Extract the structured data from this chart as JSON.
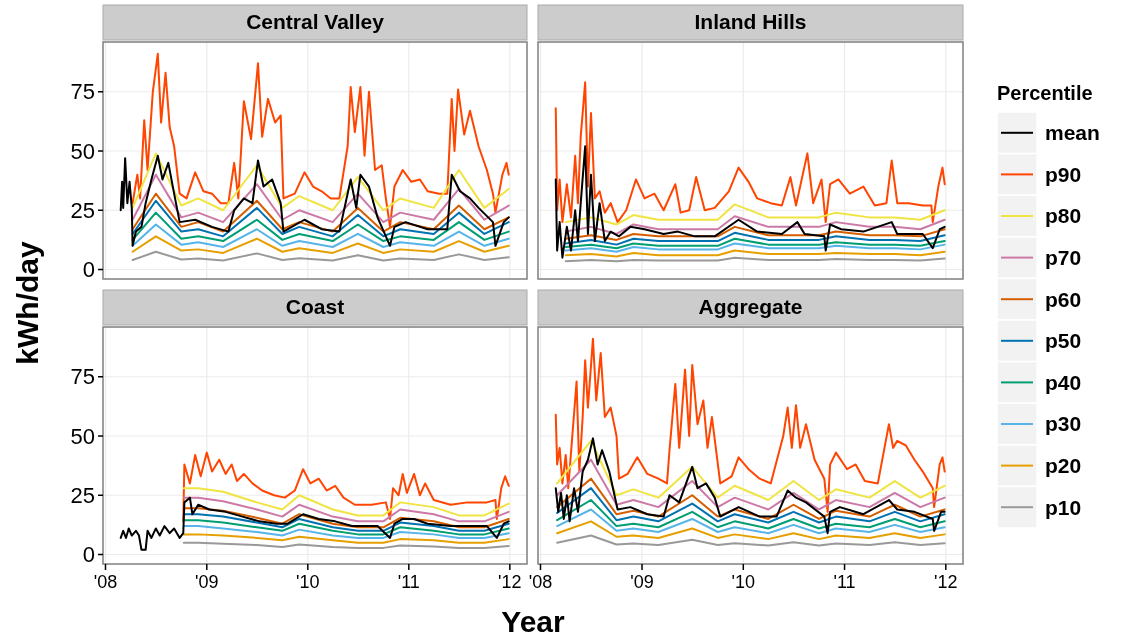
{
  "chart_data": [
    {
      "type": "line",
      "title": "Central Valley",
      "ylabel": "kWh/day",
      "tick_labels": "y",
      "grid": true,
      "xlim": [
        "2007-12-23",
        "2012-03-03"
      ],
      "ylim": [
        -4,
        96
      ],
      "yticks": [
        0,
        25,
        50,
        75
      ],
      "xticks": [
        "2008",
        "2009",
        "2010",
        "2011",
        "2012"
      ],
      "x": [
        "2008-04-08",
        "2008-07",
        "2008-10",
        "2008-12",
        "2009-03",
        "2009-07",
        "2009-10",
        "2009-12",
        "2010-04",
        "2010-07",
        "2010-10",
        "2010-12",
        "2011-04",
        "2011-07",
        "2011-10",
        "2011-12-28"
      ],
      "series": [
        {
          "color": "#000000",
          "x": [
            "2008-02-25",
            "2008-03-01",
            "2008-03-05",
            "2008-03-12",
            "2008-03-20",
            "2008-03-28",
            "2008-04-05",
            "2008-04-08",
            "2008-04-20",
            "2008-05-10",
            "2008-05-25",
            "2008-06-15",
            "2008-07-08",
            "2008-07-25",
            "2008-08-15",
            "2008-09-05",
            "2008-09-25",
            "2008-11-20",
            "2009-01-20",
            "2009-03-20",
            "2009-04-10",
            "2009-05-15",
            "2009-06-15",
            "2009-07-05",
            "2009-07-25",
            "2009-08-25",
            "2009-09-25",
            "2009-10-05",
            "2009-12-20",
            "2010-02-20",
            "2010-04-25",
            "2010-06-05",
            "2010-06-25",
            "2010-07-10",
            "2010-08-10",
            "2010-09-10",
            "2010-10-25",
            "2010-11-10",
            "2010-12-20",
            "2011-03-10",
            "2011-05-20",
            "2011-06-05",
            "2011-07-05",
            "2011-08-10",
            "2011-09-10",
            "2011-11-01",
            "2011-11-10",
            "2011-12-10",
            "2011-12-28"
          ],
          "values": [
            25,
            37,
            26,
            47,
            28,
            37,
            26,
            10,
            16,
            18,
            28,
            38,
            48,
            38,
            45,
            32,
            20,
            21,
            18,
            16,
            25,
            30,
            28,
            46,
            35,
            38,
            28,
            16,
            21,
            17,
            16,
            38,
            26,
            40,
            35,
            22,
            10,
            18,
            20,
            17,
            17,
            40,
            33,
            30,
            26,
            20,
            10,
            20,
            22
          ]
        },
        {
          "color": "#ff4500",
          "x": [
            "2008-04-08",
            "2008-04-25",
            "2008-05-05",
            "2008-05-20",
            "2008-06-01",
            "2008-06-20",
            "2008-07-08",
            "2008-07-20",
            "2008-08-05",
            "2008-08-20",
            "2008-09-05",
            "2008-09-25",
            "2008-10-20",
            "2008-11-20",
            "2008-12-20",
            "2009-01-20",
            "2009-02-20",
            "2009-03-20",
            "2009-04-10",
            "2009-04-25",
            "2009-05-15",
            "2009-06-10",
            "2009-07-05",
            "2009-07-20",
            "2009-08-10",
            "2009-09-05",
            "2009-09-25",
            "2009-10-05",
            "2009-11-15",
            "2009-12-20",
            "2010-01-20",
            "2010-02-20",
            "2010-03-25",
            "2010-04-25",
            "2010-05-25",
            "2010-06-05",
            "2010-06-20",
            "2010-07-10",
            "2010-07-25",
            "2010-08-10",
            "2010-09-01",
            "2010-09-25",
            "2010-10-10",
            "2010-10-25",
            "2010-11-10",
            "2010-12-10",
            "2011-01-10",
            "2011-02-10",
            "2011-03-10",
            "2011-04-20",
            "2011-05-20",
            "2011-06-05",
            "2011-06-15",
            "2011-06-28",
            "2011-07-20",
            "2011-08-10",
            "2011-09-10",
            "2011-10-10",
            "2011-11-01",
            "2011-11-10",
            "2011-12-05",
            "2011-12-20",
            "2011-12-28"
          ],
          "values": [
            28,
            40,
            30,
            63,
            42,
            75,
            91,
            62,
            83,
            60,
            52,
            32,
            30,
            41,
            33,
            32,
            28,
            28,
            45,
            30,
            71,
            55,
            87,
            56,
            72,
            62,
            65,
            30,
            32,
            41,
            35,
            33,
            30,
            30,
            52,
            77,
            58,
            77,
            48,
            75,
            42,
            44,
            30,
            18,
            35,
            42,
            37,
            38,
            33,
            32,
            32,
            72,
            50,
            76,
            57,
            67,
            52,
            42,
            32,
            24,
            40,
            45,
            40
          ]
        },
        {
          "color": "#f0e442",
          "values": [
            26,
            49,
            27,
            30,
            25,
            44,
            26,
            31,
            25,
            39,
            25,
            30,
            26,
            42,
            26,
            34
          ]
        },
        {
          "color": "#cc79a7",
          "values": [
            21,
            40,
            22,
            24,
            20,
            36,
            21,
            25,
            20,
            32,
            20,
            24,
            21,
            34,
            21,
            27
          ]
        },
        {
          "color": "#d55e00",
          "values": [
            17,
            32,
            18,
            20,
            16,
            29,
            17,
            20,
            16,
            26,
            16,
            20,
            17,
            27,
            17,
            22
          ]
        },
        {
          "color": "#0072b2",
          "values": [
            15,
            29,
            16,
            17,
            14,
            26,
            15,
            18,
            14,
            23,
            14,
            17,
            15,
            24,
            15,
            20
          ]
        },
        {
          "color": "#009e73",
          "values": [
            12.5,
            24,
            13,
            14,
            12,
            21,
            12.5,
            15,
            12,
            19,
            12,
            14,
            12.5,
            20,
            12.5,
            16
          ]
        },
        {
          "color": "#56b4e9",
          "values": [
            10,
            19,
            10.5,
            11.5,
            9.5,
            17,
            10,
            12,
            9.5,
            15,
            9.5,
            11.5,
            10,
            16,
            10,
            13
          ]
        },
        {
          "color": "#e69f00",
          "values": [
            7.5,
            14,
            8,
            8.5,
            7,
            13,
            7.5,
            9,
            7,
            11,
            7,
            8.5,
            7.5,
            12,
            7.5,
            10
          ]
        },
        {
          "color": "#999999",
          "values": [
            4,
            7.5,
            4.2,
            4.6,
            3.8,
            6.8,
            4,
            4.8,
            3.8,
            6,
            3.8,
            4.6,
            4,
            6.4,
            4,
            5.2
          ]
        }
      ]
    },
    {
      "type": "line",
      "title": "Inland Hills",
      "tick_labels": false,
      "grid": true,
      "legend": "right",
      "legend_title": "Percentile",
      "xlim": [
        "2007-12-23",
        "2012-03-03"
      ],
      "ylim": [
        -4,
        96
      ],
      "yticks": [
        0,
        25,
        50,
        75
      ],
      "xticks": [
        "2008",
        "2009",
        "2010",
        "2011",
        "2012"
      ],
      "x": [
        "2008-04",
        "2008-07",
        "2008-10",
        "2008-12",
        "2009-03",
        "2009-07",
        "2009-10",
        "2009-12",
        "2010-04",
        "2010-07",
        "2010-10",
        "2010-12",
        "2011-04",
        "2011-07",
        "2011-10",
        "2011-12-28"
      ],
      "series": [
        {
          "name": "mean",
          "color": "#000000",
          "x": [
            "2008-02-25",
            "2008-03-01",
            "2008-03-10",
            "2008-03-20",
            "2008-04-05",
            "2008-04-20",
            "2008-05-05",
            "2008-05-15",
            "2008-05-25",
            "2008-06-10",
            "2008-06-20",
            "2008-07-01",
            "2008-07-15",
            "2008-08-01",
            "2008-08-20",
            "2008-09-10",
            "2008-10-10",
            "2008-11-20",
            "2009-01-10",
            "2009-03-20",
            "2009-05-10",
            "2009-07-10",
            "2009-09-20",
            "2009-12-15",
            "2010-02-20",
            "2010-05-20",
            "2010-07-15",
            "2010-08-10",
            "2010-10-20",
            "2010-10-25",
            "2010-11-10",
            "2010-12-20",
            "2011-03-10",
            "2011-06-20",
            "2011-07-10",
            "2011-10-10",
            "2011-11-15",
            "2011-12-10",
            "2011-12-28"
          ],
          "values": [
            38,
            8,
            20,
            5,
            18,
            8,
            25,
            12,
            28,
            52,
            15,
            40,
            12,
            28,
            12,
            16,
            14,
            18,
            17,
            15,
            16,
            14,
            14,
            21,
            16,
            15,
            20,
            15,
            14,
            8,
            19,
            17,
            16,
            20,
            15,
            15,
            9,
            17,
            18
          ]
        },
        {
          "name": "p90",
          "color": "#ff4500",
          "x": [
            "2008-02-25",
            "2008-03-01",
            "2008-03-10",
            "2008-03-20",
            "2008-04-05",
            "2008-04-20",
            "2008-05-05",
            "2008-05-15",
            "2008-05-25",
            "2008-06-10",
            "2008-06-20",
            "2008-07-01",
            "2008-07-15",
            "2008-08-01",
            "2008-08-20",
            "2008-09-10",
            "2008-10-05",
            "2008-11-05",
            "2008-12-10",
            "2009-01-10",
            "2009-02-15",
            "2009-03-20",
            "2009-05-01",
            "2009-05-20",
            "2009-06-20",
            "2009-07-15",
            "2009-08-15",
            "2009-09-20",
            "2009-11-10",
            "2009-12-15",
            "2010-01-20",
            "2010-02-20",
            "2010-04-10",
            "2010-05-20",
            "2010-06-20",
            "2010-07-10",
            "2010-08-20",
            "2010-09-10",
            "2010-10-10",
            "2010-10-25",
            "2010-11-10",
            "2010-12-10",
            "2011-01-20",
            "2011-03-10",
            "2011-04-20",
            "2011-06-01",
            "2011-06-20",
            "2011-07-10",
            "2011-08-20",
            "2011-10-10",
            "2011-11-10",
            "2011-11-15",
            "2011-12-05",
            "2011-12-20",
            "2011-12-28"
          ],
          "values": [
            68,
            25,
            38,
            20,
            36,
            22,
            48,
            28,
            56,
            79,
            35,
            66,
            30,
            33,
            24,
            28,
            20,
            25,
            38,
            30,
            32,
            25,
            36,
            24,
            25,
            39,
            25,
            26,
            33,
            43,
            37,
            30,
            28,
            27,
            39,
            27,
            49,
            28,
            38,
            20,
            36,
            38,
            32,
            35,
            27,
            28,
            46,
            28,
            28,
            27,
            27,
            20,
            35,
            43,
            36
          ]
        },
        {
          "name": "p80",
          "color": "#f0e442",
          "values": [
            20,
            22,
            19,
            23,
            21,
            21,
            21,
            27.5,
            22,
            22,
            22,
            24,
            22,
            22,
            21,
            25
          ]
        },
        {
          "name": "p70",
          "color": "#cc79a7",
          "values": [
            16,
            18,
            15,
            19,
            17,
            17,
            17,
            22.5,
            18,
            18,
            18,
            20,
            18,
            18,
            17,
            21
          ]
        },
        {
          "name": "p60",
          "color": "#d55e00",
          "values": [
            13,
            14.5,
            12.5,
            15,
            14,
            14,
            14,
            18,
            14.5,
            14.5,
            14.5,
            16,
            14.5,
            14.5,
            14,
            17
          ]
        },
        {
          "name": "p50",
          "color": "#0072b2",
          "values": [
            11,
            12.5,
            10.5,
            13,
            12,
            12,
            12,
            15.5,
            12.5,
            12.5,
            12.5,
            14,
            12.5,
            12.5,
            12,
            14.5
          ]
        },
        {
          "name": "p40",
          "color": "#009e73",
          "values": [
            9.5,
            10.5,
            9,
            11,
            10,
            10,
            10,
            13,
            10.5,
            10.5,
            10.5,
            11.5,
            10.5,
            10.5,
            10,
            12
          ]
        },
        {
          "name": "p30",
          "color": "#56b4e9",
          "values": [
            8,
            9,
            7.5,
            9.5,
            8.5,
            8.5,
            8.5,
            11,
            9,
            9,
            9,
            10,
            9,
            9,
            8.5,
            10.5
          ]
        },
        {
          "name": "p20",
          "color": "#e69f00",
          "values": [
            6,
            6.5,
            5.5,
            7,
            6,
            6,
            6,
            8,
            6.5,
            6.5,
            6.5,
            7,
            6.5,
            6.5,
            6,
            7.5
          ]
        },
        {
          "name": "p10",
          "color": "#999999",
          "values": [
            3.5,
            4,
            3.5,
            4,
            3.8,
            3.8,
            3.8,
            5,
            4,
            4,
            4,
            4.4,
            4,
            4,
            3.8,
            4.6
          ]
        }
      ]
    },
    {
      "type": "line",
      "title": "Coast",
      "grid": true,
      "xlim": [
        "2007-12-23",
        "2012-03-03"
      ],
      "ylim": [
        -4,
        96
      ],
      "yticks": [
        0,
        25,
        50,
        75
      ],
      "xticks": [
        {
          "value": "2008",
          "label": "'08"
        },
        {
          "value": "2009",
          "label": "'09"
        },
        {
          "value": "2010",
          "label": "'10"
        },
        {
          "value": "2011",
          "label": "'11"
        },
        {
          "value": "2012",
          "label": "'12"
        }
      ],
      "x": [
        "2008-10-10",
        "2008-12",
        "2009-03",
        "2009-07",
        "2009-10",
        "2009-12",
        "2010-04",
        "2010-07",
        "2010-10",
        "2010-12",
        "2011-04",
        "2011-07",
        "2011-10",
        "2011-12-28"
      ],
      "series": [
        {
          "color": "#000000",
          "x": [
            "2008-02-25",
            "2008-03-05",
            "2008-03-15",
            "2008-03-25",
            "2008-04-05",
            "2008-04-20",
            "2008-05-01",
            "2008-05-10",
            "2008-05-25",
            "2008-06-01",
            "2008-06-15",
            "2008-07-01",
            "2008-07-15",
            "2008-08-01",
            "2008-08-20",
            "2008-09-05",
            "2008-09-25",
            "2008-10-08",
            "2008-10-12",
            "2008-11-01",
            "2008-11-10",
            "2008-12-01",
            "2009-01-10",
            "2009-03-10",
            "2009-05-10",
            "2009-07-10",
            "2009-09-10",
            "2009-10-20",
            "2009-12-15",
            "2010-02-10",
            "2010-04-10",
            "2010-06-10",
            "2010-09-10",
            "2010-10-25",
            "2010-11-10",
            "2010-12-10",
            "2011-01-20",
            "2011-03-10",
            "2011-06-01",
            "2011-10-10",
            "2011-11-15",
            "2011-12-10",
            "2011-12-28"
          ],
          "values": [
            7,
            10,
            7,
            11,
            8,
            10,
            8,
            2,
            2,
            10,
            7,
            11,
            8,
            12,
            9,
            11,
            7,
            9,
            22,
            24,
            17,
            21,
            19,
            18,
            16,
            14,
            13,
            13,
            17,
            15,
            14,
            12,
            12,
            7,
            13,
            15,
            15,
            13,
            12,
            12,
            7,
            13,
            14
          ]
        },
        {
          "color": "#ff4500",
          "x": [
            "2008-10-08",
            "2008-10-12",
            "2008-11-01",
            "2008-11-20",
            "2008-12-10",
            "2009-01-01",
            "2009-01-20",
            "2009-02-15",
            "2009-03-10",
            "2009-04-01",
            "2009-04-20",
            "2009-05-15",
            "2009-06-15",
            "2009-07-20",
            "2009-09-01",
            "2009-10-10",
            "2009-11-15",
            "2009-12-15",
            "2010-01-10",
            "2010-02-10",
            "2010-03-10",
            "2010-04-10",
            "2010-05-10",
            "2010-06-20",
            "2010-08-20",
            "2010-10-10",
            "2010-10-25",
            "2010-11-05",
            "2010-11-25",
            "2010-12-10",
            "2010-12-25",
            "2011-01-20",
            "2011-02-10",
            "2011-03-01",
            "2011-04-01",
            "2011-06-01",
            "2011-08-01",
            "2011-10-10",
            "2011-11-10",
            "2011-11-15",
            "2011-12-01",
            "2011-12-15",
            "2011-12-28"
          ],
          "values": [
            14,
            38,
            30,
            42,
            33,
            43,
            35,
            40,
            34,
            38,
            31,
            34,
            30,
            27,
            25,
            24,
            27,
            36,
            30,
            32,
            27,
            29,
            24,
            21,
            21,
            22,
            15,
            28,
            25,
            34,
            26,
            34,
            25,
            30,
            23,
            21,
            22,
            22,
            23,
            15,
            28,
            33,
            29
          ]
        },
        {
          "color": "#f0e442",
          "values": [
            28,
            28,
            26.5,
            22,
            19,
            25,
            19,
            16.5,
            16.5,
            22,
            20,
            16.5,
            16.5,
            21.5
          ]
        },
        {
          "color": "#cc79a7",
          "values": [
            24,
            24,
            22.5,
            19,
            16,
            21,
            16,
            14,
            14,
            19,
            17,
            14,
            14,
            18
          ]
        },
        {
          "color": "#d55e00",
          "values": [
            19.5,
            19.5,
            18.5,
            15.5,
            13,
            17,
            13,
            11.5,
            11.5,
            15.5,
            14,
            11.5,
            11.5,
            15
          ]
        },
        {
          "color": "#0072b2",
          "values": [
            17,
            17,
            16,
            13.5,
            11.5,
            15,
            11.5,
            10,
            10,
            13.5,
            12,
            10,
            10,
            13
          ]
        },
        {
          "color": "#009e73",
          "values": [
            14.5,
            14.5,
            13.5,
            11.5,
            10,
            13,
            10,
            8.5,
            8.5,
            11.5,
            10,
            8.5,
            8.5,
            11
          ]
        },
        {
          "color": "#56b4e9",
          "values": [
            12,
            12,
            11,
            9.5,
            8,
            10.5,
            8,
            7,
            7,
            9.5,
            8.5,
            7,
            7,
            9
          ]
        },
        {
          "color": "#e69f00",
          "values": [
            8.5,
            8.5,
            8,
            7,
            6,
            7.5,
            6,
            5,
            5,
            6.5,
            6,
            5,
            5,
            6.5
          ]
        },
        {
          "color": "#999999",
          "values": [
            5,
            5,
            4.5,
            4,
            3.2,
            4.2,
            3.2,
            2.8,
            2.8,
            3.8,
            3.4,
            2.8,
            2.8,
            3.6
          ]
        }
      ]
    },
    {
      "type": "line",
      "title": "Aggregate",
      "xlabel": "Year",
      "tick_labels": "x",
      "grid": true,
      "xlim": [
        "2007-12-23",
        "2012-03-03"
      ],
      "ylim": [
        -4,
        96
      ],
      "yticks": [
        0,
        25,
        50,
        75
      ],
      "xticks": [
        {
          "value": "2008",
          "label": "'08"
        },
        {
          "value": "2009",
          "label": "'09"
        },
        {
          "value": "2010",
          "label": "'10"
        },
        {
          "value": "2011",
          "label": "'11"
        },
        {
          "value": "2012",
          "label": "'12"
        }
      ],
      "x": [
        "2008-03-01",
        "2008-07",
        "2008-10",
        "2008-12",
        "2009-03",
        "2009-07",
        "2009-10",
        "2009-12",
        "2010-04",
        "2010-07",
        "2010-10",
        "2010-12",
        "2011-04",
        "2011-07",
        "2011-10",
        "2011-12-28"
      ],
      "series": [
        {
          "color": "#000000",
          "x": [
            "2008-02-25",
            "2008-03-05",
            "2008-03-15",
            "2008-03-25",
            "2008-04-05",
            "2008-04-15",
            "2008-05-01",
            "2008-05-15",
            "2008-06-01",
            "2008-06-20",
            "2008-07-08",
            "2008-07-25",
            "2008-08-10",
            "2008-09-05",
            "2008-10-05",
            "2008-11-20",
            "2009-01-20",
            "2009-03-20",
            "2009-04-10",
            "2009-05-15",
            "2009-06-15",
            "2009-07-01",
            "2009-07-20",
            "2009-08-20",
            "2009-09-20",
            "2009-10-10",
            "2009-12-15",
            "2010-03-01",
            "2010-05-01",
            "2010-06-10",
            "2010-07-10",
            "2010-08-15",
            "2010-10-20",
            "2010-11-01",
            "2010-11-10",
            "2010-12-15",
            "2011-03-10",
            "2011-06-10",
            "2011-07-10",
            "2011-09-10",
            "2011-11-15",
            "2011-11-20",
            "2011-12-15",
            "2011-12-28"
          ],
          "values": [
            28,
            18,
            26,
            15,
            25,
            14,
            28,
            18,
            35,
            40,
            49,
            38,
            44,
            35,
            19,
            20,
            17,
            16,
            25,
            22,
            32,
            37,
            28,
            30,
            24,
            16,
            20,
            16,
            16,
            27,
            24,
            22,
            16,
            9,
            18,
            20,
            17,
            23,
            19,
            18,
            15,
            10,
            18,
            18
          ]
        },
        {
          "color": "#ff4500",
          "x": [
            "2008-02-25",
            "2008-03-01",
            "2008-03-10",
            "2008-03-20",
            "2008-04-01",
            "2008-04-10",
            "2008-05-10",
            "2008-05-20",
            "2008-06-01",
            "2008-06-10",
            "2008-06-20",
            "2008-07-08",
            "2008-07-20",
            "2008-08-05",
            "2008-08-20",
            "2008-09-10",
            "2008-10-01",
            "2008-10-10",
            "2008-11-10",
            "2008-12-15",
            "2009-01-20",
            "2009-03-01",
            "2009-04-01",
            "2009-04-10",
            "2009-05-01",
            "2009-05-15",
            "2009-06-05",
            "2009-06-20",
            "2009-07-01",
            "2009-07-20",
            "2009-08-10",
            "2009-08-25",
            "2009-09-10",
            "2009-10-10",
            "2009-11-20",
            "2009-12-15",
            "2010-01-20",
            "2010-03-01",
            "2010-04-10",
            "2010-05-25",
            "2010-06-10",
            "2010-06-25",
            "2010-07-10",
            "2010-07-25",
            "2010-08-15",
            "2010-09-15",
            "2010-10-20",
            "2010-11-01",
            "2010-11-10",
            "2010-12-01",
            "2011-01-10",
            "2011-02-10",
            "2011-03-15",
            "2011-05-01",
            "2011-06-10",
            "2011-06-25",
            "2011-07-10",
            "2011-08-10",
            "2011-09-10",
            "2011-10-10",
            "2011-11-15",
            "2011-11-20",
            "2011-12-10",
            "2011-12-20",
            "2011-12-28"
          ],
          "values": [
            59,
            38,
            45,
            30,
            42,
            28,
            73,
            35,
            58,
            82,
            62,
            91,
            65,
            85,
            58,
            62,
            50,
            32,
            34,
            41,
            34,
            32,
            30,
            44,
            72,
            45,
            78,
            50,
            80,
            55,
            65,
            45,
            58,
            30,
            33,
            41,
            36,
            32,
            30,
            50,
            62,
            45,
            63,
            45,
            55,
            40,
            32,
            18,
            38,
            43,
            36,
            38,
            31,
            30,
            55,
            45,
            48,
            46,
            40,
            35,
            28,
            20,
            38,
            41,
            35
          ]
        },
        {
          "color": "#f0e442",
          "values": [
            30,
            48,
            25,
            27.5,
            24,
            37,
            24,
            29,
            23,
            31,
            23,
            27.5,
            24,
            31,
            24,
            29
          ]
        },
        {
          "color": "#cc79a7",
          "values": [
            25,
            40,
            21,
            23,
            20,
            31,
            20,
            24,
            19,
            26,
            19,
            23,
            20,
            26,
            20,
            24
          ]
        },
        {
          "color": "#d55e00",
          "values": [
            20,
            32,
            17,
            18.5,
            16,
            25,
            16,
            19,
            15,
            21,
            15,
            18.5,
            16,
            21,
            16,
            19
          ]
        },
        {
          "color": "#0072b2",
          "values": [
            17.5,
            28,
            14.5,
            16,
            14,
            21.5,
            14,
            17,
            13.5,
            18,
            13.5,
            16,
            14,
            18,
            14,
            17
          ]
        },
        {
          "color": "#009e73",
          "values": [
            14.5,
            23,
            12,
            13,
            11.5,
            18,
            11.5,
            14,
            11,
            15,
            11,
            13,
            11.5,
            15,
            11.5,
            14
          ]
        },
        {
          "color": "#56b4e9",
          "values": [
            12,
            19,
            10,
            11,
            9.5,
            15,
            9.5,
            11.5,
            9,
            12.5,
            9,
            11,
            9.5,
            12.5,
            9.5,
            11.5
          ]
        },
        {
          "color": "#e69f00",
          "values": [
            9,
            14,
            7.5,
            8,
            7,
            11,
            7,
            8.5,
            6.5,
            9,
            6.5,
            8,
            7,
            9,
            7,
            8.5
          ]
        },
        {
          "color": "#999999",
          "values": [
            5,
            8,
            4.2,
            4.6,
            4,
            6.2,
            4,
            4.8,
            3.8,
            5.2,
            3.8,
            4.6,
            4,
            5.2,
            4,
            4.8
          ]
        }
      ]
    }
  ]
}
